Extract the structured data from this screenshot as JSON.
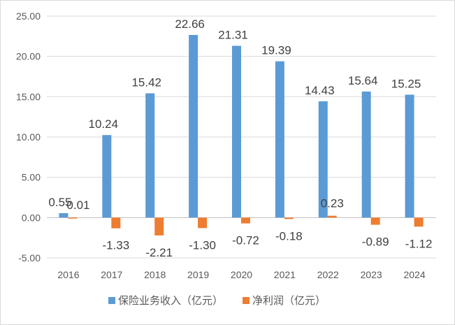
{
  "chart_data": {
    "type": "bar",
    "categories": [
      "2016",
      "2017",
      "2018",
      "2019",
      "2020",
      "2021",
      "2022",
      "2023",
      "2024"
    ],
    "series": [
      {
        "name": "保险业务收入（亿元）",
        "color": "#5b9bd5",
        "values": [
          0.55,
          10.24,
          15.42,
          22.66,
          21.31,
          19.39,
          14.43,
          15.64,
          15.25
        ],
        "labels": [
          "0.55",
          "10.24",
          "15.42",
          "22.66",
          "21.31",
          "19.39",
          "14.43",
          "15.64",
          "15.25"
        ]
      },
      {
        "name": "净利润（亿元）",
        "color": "#ed7d31",
        "values": [
          0.01,
          -1.33,
          -2.21,
          -1.3,
          -0.72,
          -0.18,
          0.23,
          -0.89,
          -1.12
        ],
        "labels": [
          "0.01",
          "-1.33",
          "-2.21",
          "-1.30",
          "-0.72",
          "-0.18",
          "0.23",
          "-0.89",
          "-1.12"
        ]
      }
    ],
    "yticks": [
      "25.00",
      "20.00",
      "15.00",
      "10.00",
      "5.00",
      "0.00",
      "-5.00"
    ],
    "ylim": [
      -5,
      25
    ],
    "ytick_step": 5,
    "grid": true,
    "legend_position": "bottom",
    "title": "",
    "xlabel": "",
    "ylabel": ""
  }
}
